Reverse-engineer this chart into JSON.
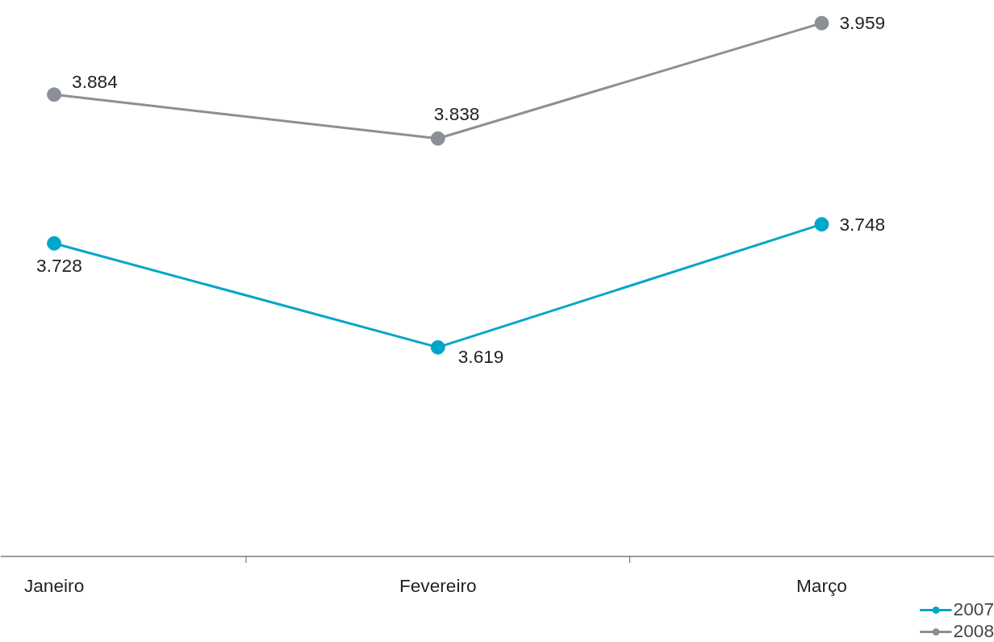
{
  "chart_data": {
    "type": "line",
    "categories": [
      "Janeiro",
      "Fevereiro",
      "Março"
    ],
    "series": [
      {
        "name": "2007",
        "color": "#00a6c8",
        "values": [
          3.728,
          3.619,
          3.748
        ]
      },
      {
        "name": "2008",
        "color": "#8b9097",
        "values": [
          3.884,
          3.838,
          3.959
        ]
      }
    ],
    "tick_labels": "x",
    "data_labels": true,
    "marker": "circle",
    "grid": false,
    "legend": "bottom right"
  }
}
